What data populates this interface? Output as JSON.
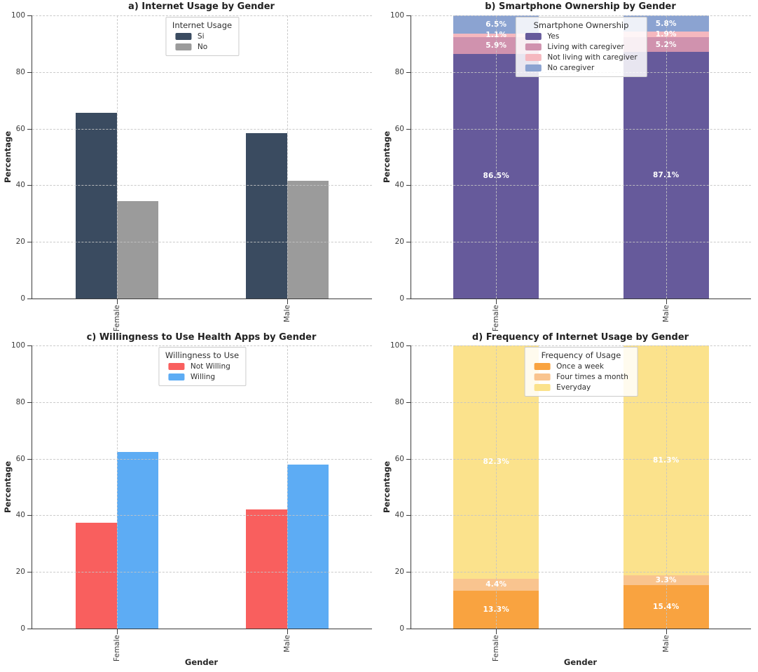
{
  "chart_data": [
    {
      "panel": "a",
      "type": "bar",
      "mode": "grouped",
      "title": "a) Internet Usage by Gender",
      "legend_title": "Internet Usage",
      "legend_position": "upper center",
      "ylabel": "Percentage",
      "xlabel": "",
      "categories": [
        "Female",
        "Male"
      ],
      "yticks": [
        0,
        20,
        40,
        60,
        80,
        100
      ],
      "ylim": [
        0,
        100
      ],
      "grid": true,
      "series": [
        {
          "name": "Si",
          "color": "#3a4b60",
          "values": [
            65.7,
            58.5
          ]
        },
        {
          "name": "No",
          "color": "#9b9b9b",
          "values": [
            34.3,
            41.5
          ]
        }
      ]
    },
    {
      "panel": "b",
      "type": "bar",
      "mode": "stacked",
      "title": "b) Smartphone Ownership by Gender",
      "legend_title": "Smartphone Ownership",
      "legend_position": "upper center",
      "ylabel": "Percentage",
      "xlabel": "",
      "categories": [
        "Female",
        "Male"
      ],
      "yticks": [
        0,
        20,
        40,
        60,
        80,
        100
      ],
      "ylim": [
        0,
        100
      ],
      "grid": true,
      "series": [
        {
          "name": "Yes",
          "color": "#665a9b",
          "values": [
            86.5,
            87.1
          ],
          "labels": [
            "86.5%",
            "87.1%"
          ]
        },
        {
          "name": "Living with caregiver",
          "color": "#d092ae",
          "values": [
            5.9,
            5.2
          ],
          "labels": [
            "5.9%",
            "5.2%"
          ]
        },
        {
          "name": "Not living with caregiver",
          "color": "#f5b8bf",
          "values": [
            1.1,
            1.9
          ],
          "labels": [
            "1.1%",
            "1.9%"
          ]
        },
        {
          "name": "No caregiver",
          "color": "#8ba3d1",
          "values": [
            6.5,
            5.8
          ],
          "labels": [
            "6.5%",
            "5.8%"
          ]
        }
      ]
    },
    {
      "panel": "c",
      "type": "bar",
      "mode": "grouped",
      "title": "c) Willingness to Use Health Apps by Gender",
      "legend_title": "Willingness to Use",
      "legend_position": "upper center",
      "ylabel": "Percentage",
      "xlabel": "Gender",
      "categories": [
        "Female",
        "Male"
      ],
      "yticks": [
        0,
        20,
        40,
        60,
        80,
        100
      ],
      "ylim": [
        0,
        100
      ],
      "grid": true,
      "series": [
        {
          "name": "Not Willing",
          "color": "#f95f5e",
          "values": [
            37.5,
            42.0
          ]
        },
        {
          "name": "Willing",
          "color": "#5dacf4",
          "values": [
            62.5,
            58.0
          ]
        }
      ]
    },
    {
      "panel": "d",
      "type": "bar",
      "mode": "stacked",
      "title": "d) Frequency of Internet Usage by Gender",
      "legend_title": "Frequency of Usage",
      "legend_position": "upper center",
      "ylabel": "Percentage",
      "xlabel": "Gender",
      "categories": [
        "Female",
        "Male"
      ],
      "yticks": [
        0,
        20,
        40,
        60,
        80,
        100
      ],
      "ylim": [
        0,
        100
      ],
      "grid": true,
      "series": [
        {
          "name": "Once a week",
          "color": "#f9a340",
          "values": [
            13.3,
            15.4
          ],
          "labels": [
            "13.3%",
            "15.4%"
          ]
        },
        {
          "name": "Four times a month",
          "color": "#f9c48f",
          "values": [
            4.4,
            3.3
          ],
          "labels": [
            "4.4%",
            "3.3%"
          ]
        },
        {
          "name": "Everyday",
          "color": "#fbe28c",
          "values": [
            82.3,
            81.3
          ],
          "labels": [
            "82.3%",
            "81.3%"
          ]
        }
      ]
    }
  ]
}
